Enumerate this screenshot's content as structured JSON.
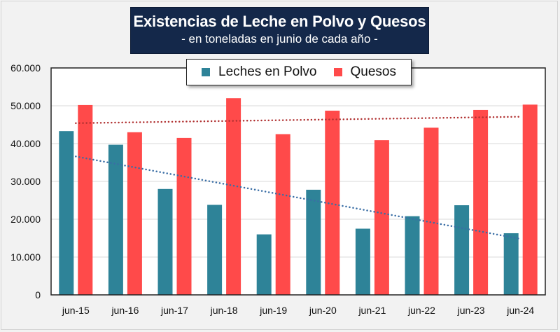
{
  "title": {
    "main": "Existencias de Leche en Polvo y Quesos",
    "subtitle": "- en toneladas en junio de cada año -"
  },
  "colors": {
    "leche": "#2e8398",
    "quesos": "#ff4a4a",
    "leche_trend": "#3a6ea5",
    "quesos_trend": "#b03030",
    "title_bg": "#14284a"
  },
  "legend": {
    "items": [
      {
        "label": "Leches en Polvo",
        "color": "#2e8398"
      },
      {
        "label": "Quesos",
        "color": "#ff4a4a"
      }
    ],
    "placement": "top-center"
  },
  "chart_data": {
    "type": "bar",
    "title": "Existencias de Leche en Polvo y Quesos",
    "subtitle": "- en toneladas en junio de cada año -",
    "xlabel": "",
    "ylabel": "",
    "categories": [
      "jun-15",
      "jun-16",
      "jun-17",
      "jun-18",
      "jun-19",
      "jun-20",
      "jun-21",
      "jun-22",
      "jun-23",
      "jun-24"
    ],
    "series": [
      {
        "name": "Leches en Polvo",
        "values": [
          43300,
          39700,
          28000,
          23800,
          16000,
          27800,
          17500,
          20800,
          23700,
          16300
        ]
      },
      {
        "name": "Quesos",
        "values": [
          50200,
          43000,
          41500,
          52000,
          42500,
          48700,
          40900,
          44200,
          48900,
          50300
        ]
      }
    ],
    "trendlines": [
      {
        "series": "Leches en Polvo",
        "type": "linear",
        "style": "dotted",
        "start": 36600,
        "end": 14800
      },
      {
        "series": "Quesos",
        "type": "linear",
        "style": "dotted",
        "start": 45400,
        "end": 47100
      }
    ],
    "ylim": [
      0,
      60000
    ],
    "yticks": [
      0,
      10000,
      20000,
      30000,
      40000,
      50000,
      60000
    ],
    "ytick_labels": [
      "0",
      "10.000",
      "20.000",
      "30.000",
      "40.000",
      "50.000",
      "60.000"
    ],
    "grid": true,
    "legend_position": "top-center"
  }
}
